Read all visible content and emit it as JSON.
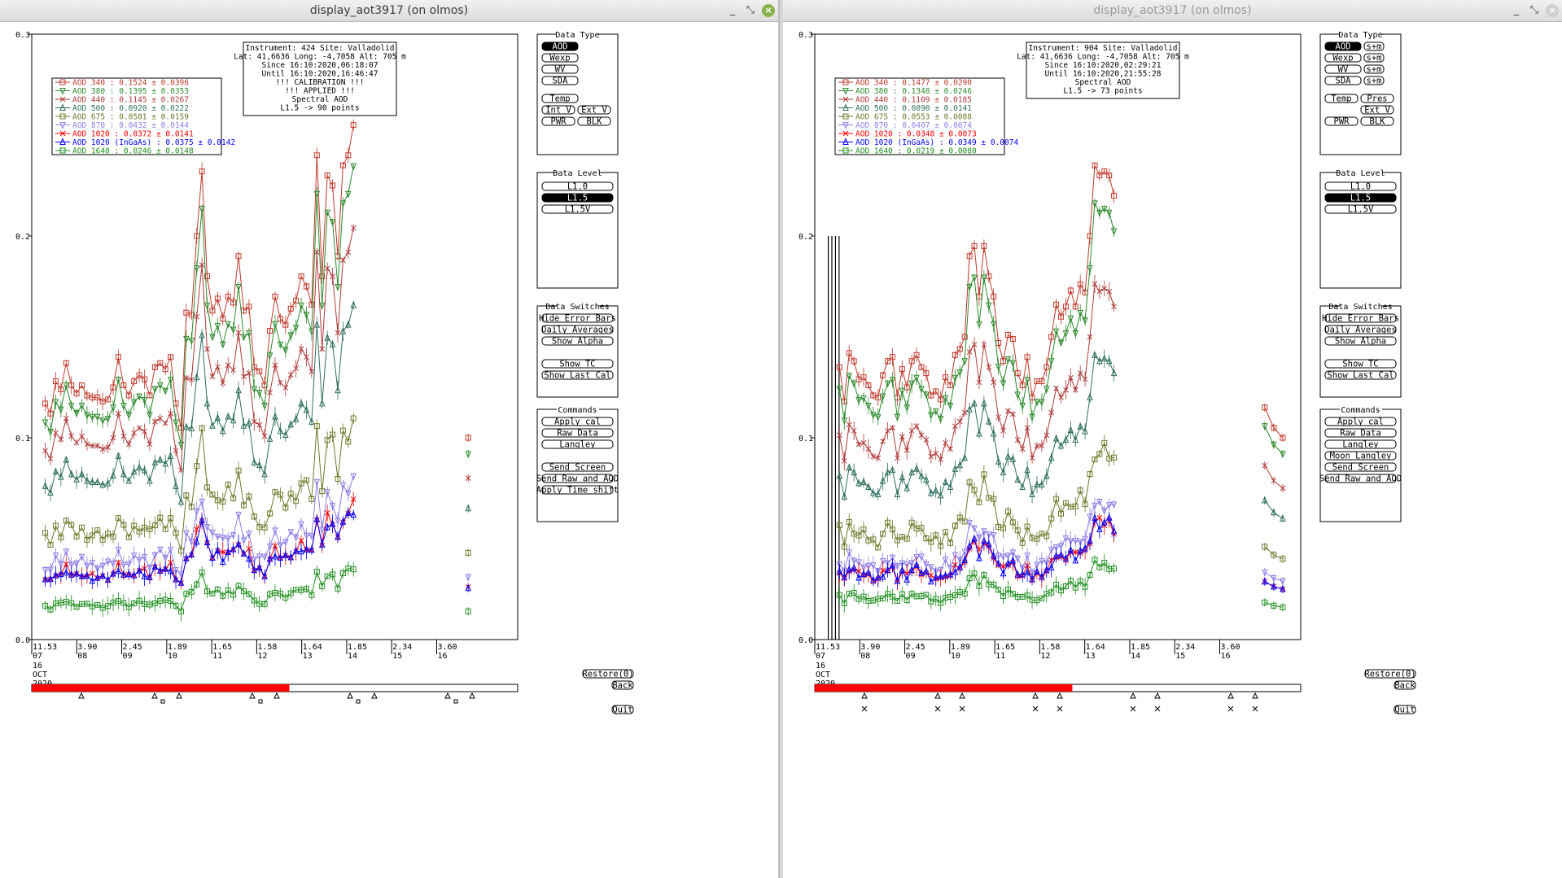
{
  "windows": [
    {
      "title": "display_aot3917 (on olmos)",
      "info_lines": [
        "Instrument: 424 Site: Valladolid",
        "Lat: 41,6636 Long: -4,7058 Alt: 705 m",
        "Since 16:10:2020,06:18:07",
        "Until 16:10:2020,16:46:47",
        "!!! CALIBRATION !!!",
        "!!!   APPLIED   !!!",
        "Spectral AOD",
        "L1.5 -> 90 points"
      ],
      "legend": [
        {
          "label": "AOD 340  : 0.1524 ± 0.0396",
          "color": "#c0392b"
        },
        {
          "label": "AOD 380  : 0.1395 ± 0.0353",
          "color": "#2e8b2e"
        },
        {
          "label": "AOD 440  : 0.1145 ± 0.0267",
          "color": "#b03a3a"
        },
        {
          "label": "AOD 500  : 0.0920 ± 0.0222",
          "color": "#2f6f5f"
        },
        {
          "label": "AOD 675  : 0.0581 ± 0.0159",
          "color": "#6b7a2a"
        },
        {
          "label": "AOD 870  : 0.0432 ± 0.0144",
          "color": "#8f7fe8"
        },
        {
          "label": "AOD 1020  : 0.0372 ± 0.0141",
          "color": "#ff0000"
        },
        {
          "label": "AOD 1020 (InGaAs)  : 0.0375 ± 0.0142",
          "color": "#0000ff"
        },
        {
          "label": "AOD 1640  : 0.0246 ± 0.0148",
          "color": "#1f8f1f"
        }
      ],
      "data_type_buttons": [
        [
          "AOD"
        ],
        [
          "Wexp"
        ],
        [
          "WV"
        ],
        [
          "SDA"
        ],
        [
          "Temp"
        ],
        [
          "Int V",
          "Ext V"
        ],
        [
          "PWR",
          "BLK"
        ]
      ],
      "data_type_selected": "AOD",
      "command_buttons": [
        "Apply cal",
        "Raw Data",
        "Langley",
        "Send Screen",
        "Send Raw and AOD",
        "Apply Time shift"
      ]
    },
    {
      "title": "display_aot3917 (on olmos)",
      "info_lines": [
        "Instrument: 904 Site: Valladolid",
        "Lat: 41,6636 Long: -4,7058 Alt: 705 m",
        "Since 16:10:2020,02:29:21",
        "Until 16:10:2020,21:55:28",
        "Spectral AOD",
        "L1.5 -> 73 points"
      ],
      "legend": [
        {
          "label": "AOD 340  : 0.1477 ± 0.0290",
          "color": "#c0392b"
        },
        {
          "label": "AOD 380  : 0.1348 ± 0.0246",
          "color": "#2e8b2e"
        },
        {
          "label": "AOD 440  : 0.1109 ± 0.0185",
          "color": "#b03a3a"
        },
        {
          "label": "AOD 500  : 0.0890 ± 0.0141",
          "color": "#2f6f5f"
        },
        {
          "label": "AOD 675  : 0.0553 ± 0.0088",
          "color": "#6b7a2a"
        },
        {
          "label": "AOD 870  : 0.0407 ± 0.0074",
          "color": "#8f7fe8"
        },
        {
          "label": "AOD 1020  : 0.0348 ± 0.0073",
          "color": "#ff0000"
        },
        {
          "label": "AOD 1020 (InGaAs)  : 0.0349 ± 0.0074",
          "color": "#0000ff"
        },
        {
          "label": "AOD 1640  : 0.0219 ± 0.0080",
          "color": "#1f8f1f"
        }
      ],
      "data_type_buttons": [
        [
          "AOD",
          "s+m"
        ],
        [
          "Wexp",
          "s+m"
        ],
        [
          "WV",
          "s+m"
        ],
        [
          "SDA",
          "s+m"
        ],
        [
          "Temp",
          "Pres"
        ],
        [
          "",
          "Ext V"
        ],
        [
          "PWR",
          "BLK"
        ]
      ],
      "data_type_selected": "AOD",
      "command_buttons": [
        "Apply cal",
        "Raw Data",
        "Langley",
        "Moon Langley",
        "Send Screen",
        "Send Raw and AOD"
      ]
    }
  ],
  "panels": {
    "data_type": "Data Type",
    "data_level": "Data Level",
    "data_level_buttons": [
      "L1.0",
      "L1.5",
      "L1.5V"
    ],
    "data_level_selected": "L1.5",
    "data_switches": "Data Switches",
    "switch_buttons": [
      "Hide Error Bars",
      "Daily Averages",
      "Show Alpha",
      "Show TC",
      "Show Last Cal"
    ],
    "commands": "Commands",
    "restore": "Restore(0)",
    "back": "Back",
    "quit": "Quit"
  },
  "chart_data": {
    "type": "line",
    "xlabel_lines": [
      "16",
      "OCT",
      "2020"
    ],
    "yticks": [
      "0.0",
      "0.1",
      "0.2",
      "0.3"
    ],
    "ylim": [
      0,
      0.3
    ],
    "x_ticks": [
      {
        "top": "11.53",
        "bottom": "07"
      },
      {
        "top": "3.90",
        "bottom": "08"
      },
      {
        "top": "2.45",
        "bottom": "09"
      },
      {
        "top": "1.89",
        "bottom": "10"
      },
      {
        "top": "1.65",
        "bottom": "11"
      },
      {
        "top": "1.58",
        "bottom": "12"
      },
      {
        "top": "1.64",
        "bottom": "13"
      },
      {
        "top": "1.85",
        "bottom": "14"
      },
      {
        "top": "2.34",
        "bottom": "15"
      },
      {
        "top": "3.60",
        "bottom": "16"
      }
    ],
    "xlim": [
      7,
      17.8
    ],
    "progress_fraction": 0.53,
    "left_series": {
      "x_range": [
        7.3,
        14.15
      ],
      "isolated_x": 16.7,
      "base": [
        0.117,
        0.112,
        0.128,
        0.124,
        0.137,
        0.126,
        0.122,
        0.126,
        0.121,
        0.12,
        0.12,
        0.118,
        0.119,
        0.125,
        0.14,
        0.126,
        0.121,
        0.128,
        0.131,
        0.129,
        0.121,
        0.135,
        0.137,
        0.134,
        0.14,
        0.117,
        0.105,
        0.162,
        0.161,
        0.2,
        0.232,
        0.18,
        0.163,
        0.169,
        0.159,
        0.17,
        0.167,
        0.19,
        0.163,
        0.165,
        0.135,
        0.133,
        0.126,
        0.153,
        0.17,
        0.159,
        0.156,
        0.164,
        0.168,
        0.18,
        0.175,
        0.166,
        0.24,
        0.18,
        0.23,
        0.225,
        0.19,
        0.235,
        0.24,
        0.255
      ],
      "isolated": [
        0.1
      ],
      "scales": {
        "340": 1.0,
        "380": 0.92,
        "440": 0.8,
        "500": 0.65,
        "675": 0.43,
        "870": 0.31,
        "1020": 0.26,
        "InGaAs": 0.255,
        "1640": 0.14
      },
      "fine_base_scale": 0.26
    },
    "right_series": {
      "x_range": [
        7.55,
        13.65
      ],
      "isolated_x_range": [
        17.0,
        17.4
      ],
      "base": [
        0.135,
        0.118,
        0.142,
        0.138,
        0.129,
        0.13,
        0.126,
        0.121,
        0.12,
        0.131,
        0.138,
        0.14,
        0.12,
        0.134,
        0.125,
        0.138,
        0.141,
        0.135,
        0.132,
        0.121,
        0.123,
        0.119,
        0.13,
        0.126,
        0.141,
        0.144,
        0.15,
        0.19,
        0.195,
        0.17,
        0.195,
        0.18,
        0.17,
        0.147,
        0.138,
        0.151,
        0.149,
        0.132,
        0.126,
        0.14,
        0.12,
        0.128,
        0.128,
        0.135,
        0.15,
        0.166,
        0.16,
        0.165,
        0.173,
        0.165,
        0.176,
        0.172,
        0.2,
        0.235,
        0.23,
        0.232,
        0.23,
        0.22
      ],
      "isolated": [
        0.115,
        0.105,
        0.1
      ],
      "scales": {
        "340": 1.0,
        "380": 0.92,
        "440": 0.75,
        "500": 0.6,
        "675": 0.4,
        "870": 0.29,
        "1020": 0.25,
        "InGaAs": 0.25,
        "1640": 0.16
      }
    }
  }
}
